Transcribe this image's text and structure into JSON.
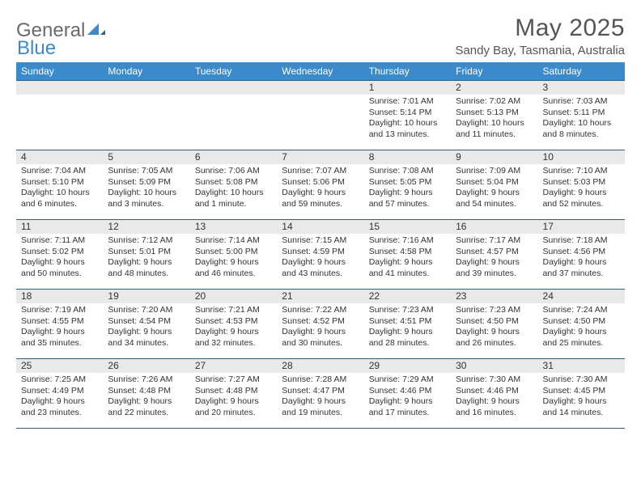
{
  "logo": {
    "text1": "General",
    "text2": "Blue"
  },
  "title": "May 2025",
  "location": "Sandy Bay, Tasmania, Australia",
  "colors": {
    "header_bg": "#3b8acb",
    "header_text": "#ffffff",
    "daynum_bg": "#e9e9e9",
    "rule": "#2c5f8a",
    "logo_gray": "#6a6a6a",
    "logo_blue": "#3b8acb"
  },
  "day_headers": [
    "Sunday",
    "Monday",
    "Tuesday",
    "Wednesday",
    "Thursday",
    "Friday",
    "Saturday"
  ],
  "weeks": [
    [
      null,
      null,
      null,
      null,
      {
        "n": "1",
        "sr": "7:01 AM",
        "ss": "5:14 PM",
        "dl": "10 hours and 13 minutes."
      },
      {
        "n": "2",
        "sr": "7:02 AM",
        "ss": "5:13 PM",
        "dl": "10 hours and 11 minutes."
      },
      {
        "n": "3",
        "sr": "7:03 AM",
        "ss": "5:11 PM",
        "dl": "10 hours and 8 minutes."
      }
    ],
    [
      {
        "n": "4",
        "sr": "7:04 AM",
        "ss": "5:10 PM",
        "dl": "10 hours and 6 minutes."
      },
      {
        "n": "5",
        "sr": "7:05 AM",
        "ss": "5:09 PM",
        "dl": "10 hours and 3 minutes."
      },
      {
        "n": "6",
        "sr": "7:06 AM",
        "ss": "5:08 PM",
        "dl": "10 hours and 1 minute."
      },
      {
        "n": "7",
        "sr": "7:07 AM",
        "ss": "5:06 PM",
        "dl": "9 hours and 59 minutes."
      },
      {
        "n": "8",
        "sr": "7:08 AM",
        "ss": "5:05 PM",
        "dl": "9 hours and 57 minutes."
      },
      {
        "n": "9",
        "sr": "7:09 AM",
        "ss": "5:04 PM",
        "dl": "9 hours and 54 minutes."
      },
      {
        "n": "10",
        "sr": "7:10 AM",
        "ss": "5:03 PM",
        "dl": "9 hours and 52 minutes."
      }
    ],
    [
      {
        "n": "11",
        "sr": "7:11 AM",
        "ss": "5:02 PM",
        "dl": "9 hours and 50 minutes."
      },
      {
        "n": "12",
        "sr": "7:12 AM",
        "ss": "5:01 PM",
        "dl": "9 hours and 48 minutes."
      },
      {
        "n": "13",
        "sr": "7:14 AM",
        "ss": "5:00 PM",
        "dl": "9 hours and 46 minutes."
      },
      {
        "n": "14",
        "sr": "7:15 AM",
        "ss": "4:59 PM",
        "dl": "9 hours and 43 minutes."
      },
      {
        "n": "15",
        "sr": "7:16 AM",
        "ss": "4:58 PM",
        "dl": "9 hours and 41 minutes."
      },
      {
        "n": "16",
        "sr": "7:17 AM",
        "ss": "4:57 PM",
        "dl": "9 hours and 39 minutes."
      },
      {
        "n": "17",
        "sr": "7:18 AM",
        "ss": "4:56 PM",
        "dl": "9 hours and 37 minutes."
      }
    ],
    [
      {
        "n": "18",
        "sr": "7:19 AM",
        "ss": "4:55 PM",
        "dl": "9 hours and 35 minutes."
      },
      {
        "n": "19",
        "sr": "7:20 AM",
        "ss": "4:54 PM",
        "dl": "9 hours and 34 minutes."
      },
      {
        "n": "20",
        "sr": "7:21 AM",
        "ss": "4:53 PM",
        "dl": "9 hours and 32 minutes."
      },
      {
        "n": "21",
        "sr": "7:22 AM",
        "ss": "4:52 PM",
        "dl": "9 hours and 30 minutes."
      },
      {
        "n": "22",
        "sr": "7:23 AM",
        "ss": "4:51 PM",
        "dl": "9 hours and 28 minutes."
      },
      {
        "n": "23",
        "sr": "7:23 AM",
        "ss": "4:50 PM",
        "dl": "9 hours and 26 minutes."
      },
      {
        "n": "24",
        "sr": "7:24 AM",
        "ss": "4:50 PM",
        "dl": "9 hours and 25 minutes."
      }
    ],
    [
      {
        "n": "25",
        "sr": "7:25 AM",
        "ss": "4:49 PM",
        "dl": "9 hours and 23 minutes."
      },
      {
        "n": "26",
        "sr": "7:26 AM",
        "ss": "4:48 PM",
        "dl": "9 hours and 22 minutes."
      },
      {
        "n": "27",
        "sr": "7:27 AM",
        "ss": "4:48 PM",
        "dl": "9 hours and 20 minutes."
      },
      {
        "n": "28",
        "sr": "7:28 AM",
        "ss": "4:47 PM",
        "dl": "9 hours and 19 minutes."
      },
      {
        "n": "29",
        "sr": "7:29 AM",
        "ss": "4:46 PM",
        "dl": "9 hours and 17 minutes."
      },
      {
        "n": "30",
        "sr": "7:30 AM",
        "ss": "4:46 PM",
        "dl": "9 hours and 16 minutes."
      },
      {
        "n": "31",
        "sr": "7:30 AM",
        "ss": "4:45 PM",
        "dl": "9 hours and 14 minutes."
      }
    ]
  ],
  "labels": {
    "sunrise": "Sunrise:",
    "sunset": "Sunset:",
    "daylight": "Daylight:"
  }
}
